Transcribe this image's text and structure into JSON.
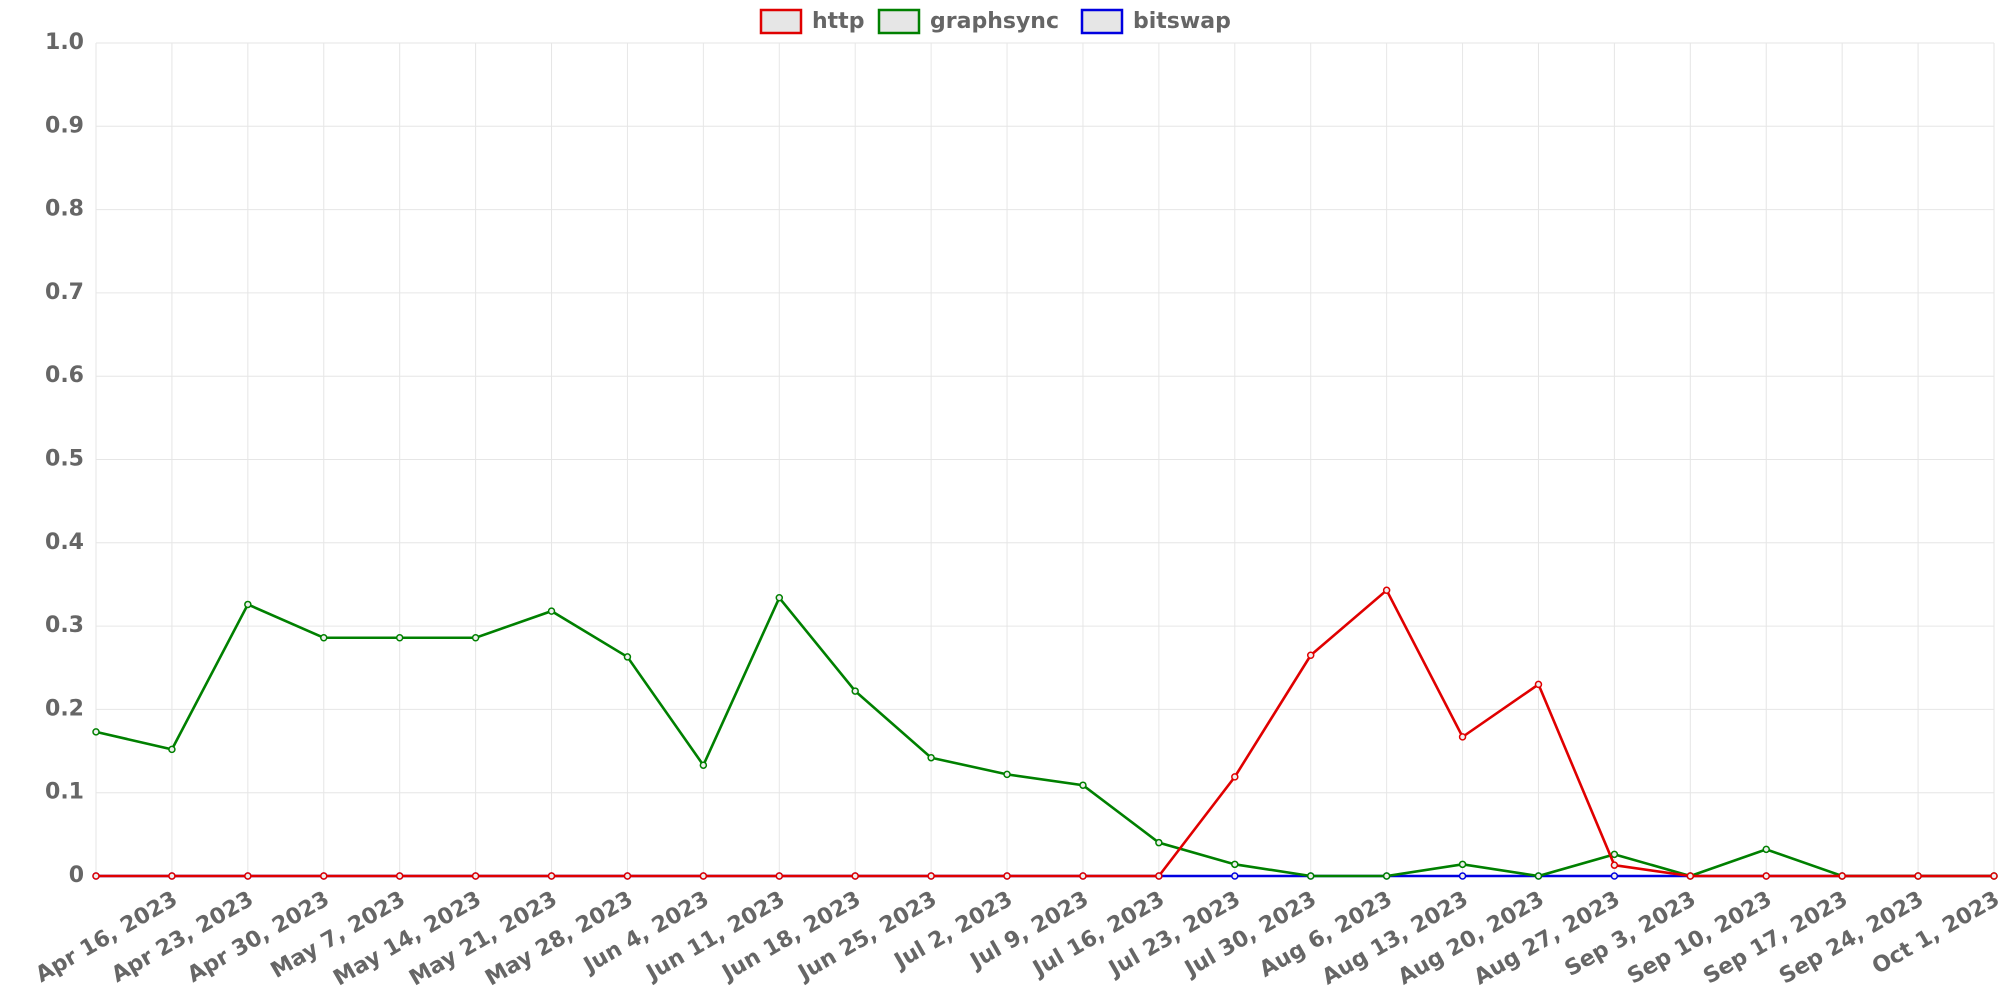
{
  "chart_data": {
    "type": "line",
    "categories": [
      null,
      "Apr 16, 2023",
      "Apr 23, 2023",
      "Apr 30, 2023",
      "May 7, 2023",
      "May 14, 2023",
      "May 21, 2023",
      "May 28, 2023",
      "Jun 4, 2023",
      "Jun 11, 2023",
      "Jun 18, 2023",
      "Jun 25, 2023",
      "Jul 2, 2023",
      "Jul 9, 2023",
      "Jul 16, 2023",
      "Jul 23, 2023",
      "Jul 30, 2023",
      "Aug 6, 2023",
      "Aug 13, 2023",
      "Aug 20, 2023",
      "Aug 27, 2023",
      "Sep 3, 2023",
      "Sep 10, 2023",
      "Sep 17, 2023",
      "Sep 24, 2023",
      "Oct 1, 2023"
    ],
    "series": [
      {
        "name": "http",
        "color": "#e00000",
        "values": [
          0,
          0,
          0,
          0,
          0,
          0,
          0,
          0,
          0,
          0,
          0,
          0,
          0,
          0,
          0,
          0.119,
          0.265,
          0.343,
          0.167,
          0.23,
          0.013,
          0,
          0,
          0,
          0,
          0
        ]
      },
      {
        "name": "graphsync",
        "color": "#008000",
        "values": [
          0.173,
          0.152,
          0.326,
          0.286,
          0.286,
          0.286,
          0.318,
          0.263,
          0.133,
          0.334,
          0.222,
          0.142,
          0.122,
          0.109,
          0.04,
          0.014,
          0,
          0,
          0.014,
          0,
          0.026,
          0,
          0.032,
          0,
          0,
          0
        ]
      },
      {
        "name": "bitswap",
        "color": "#0000e0",
        "values": [
          0,
          0,
          0,
          0,
          0,
          0,
          0,
          0,
          0,
          0,
          0,
          0,
          0,
          0,
          0,
          0,
          0,
          0,
          0,
          0,
          0,
          0,
          0,
          0,
          0,
          0
        ]
      }
    ],
    "ylim": [
      0,
      1
    ],
    "yticks": [
      0,
      0.1,
      0.2,
      0.3,
      0.4,
      0.5,
      0.6,
      0.7,
      0.8,
      0.9,
      {
        "value": 1,
        "label": "1.0"
      }
    ],
    "grid": true,
    "legend": "top"
  }
}
